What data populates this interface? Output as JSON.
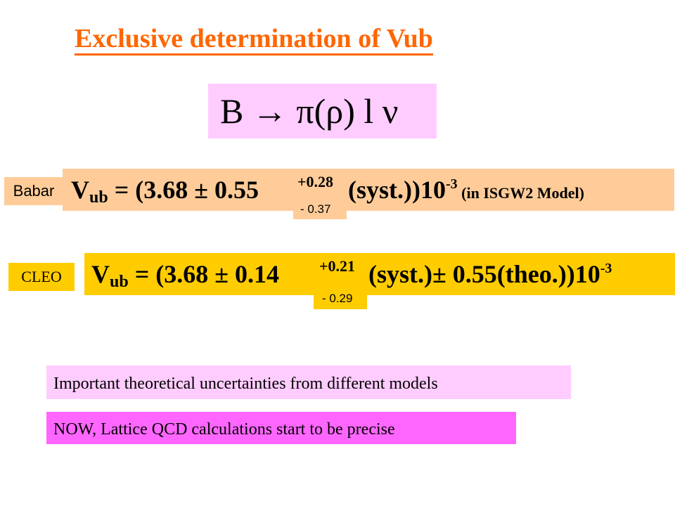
{
  "title": "Exclusive determination of Vub",
  "decay": {
    "text": "B  →  π(ρ) l ν"
  },
  "babar": {
    "label": "Babar",
    "V": "V",
    "sub": "ub",
    "main": " = (3.68 ± 0.55 ",
    "err_up": "+0.28",
    "err_down": "- 0.37",
    "tail": "(syst.))10",
    "exp": "-3",
    "model": " (in ISGW2 Model)"
  },
  "cleo": {
    "label": "CLEO",
    "V": "V",
    "sub": "ub",
    "main": " = (3.68 ± 0.14 ",
    "err_up": "+0.21",
    "err_down": "- 0.29",
    "tail": "(syst.)± 0.55(theo.))10",
    "exp": "-3"
  },
  "notes": [
    "Important theoretical uncertainties from different models",
    "NOW, Lattice QCD calculations start to be precise"
  ],
  "colors": {
    "title": "#ff6600",
    "decay_bg": "#ffccff",
    "babar_bg": "#ffcc99",
    "cleo_bg": "#ffcc00",
    "note1_bg": "#ffccff",
    "note2_bg": "#ff66ff"
  }
}
